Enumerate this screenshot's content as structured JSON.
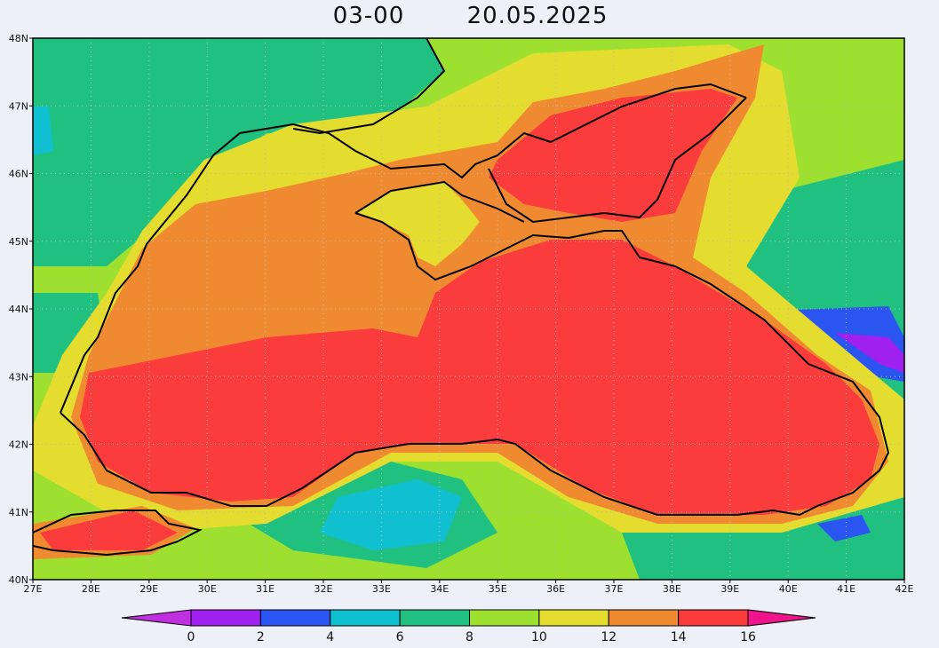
{
  "title": {
    "time": "03-00",
    "date": "20.05.2025"
  },
  "x_axis": {
    "labels": [
      "27E",
      "28E",
      "29E",
      "30E",
      "31E",
      "32E",
      "33E",
      "34E",
      "35E",
      "36E",
      "37E",
      "38E",
      "39E",
      "40E",
      "41E",
      "42E"
    ]
  },
  "y_axis": {
    "labels": [
      "40N",
      "41N",
      "42N",
      "43N",
      "44N",
      "45N",
      "46N",
      "47N",
      "48N"
    ]
  },
  "colorbar": {
    "labels": [
      "0",
      "2",
      "4",
      "6",
      "8",
      "10",
      "12",
      "14",
      "16"
    ],
    "colors": [
      "#c030e0",
      "#a020f0",
      "#2a55f0",
      "#10c0d0",
      "#20c080",
      "#9de030",
      "#e5dc30",
      "#f08a30",
      "#fa3c3c",
      "#f0148c"
    ]
  }
}
